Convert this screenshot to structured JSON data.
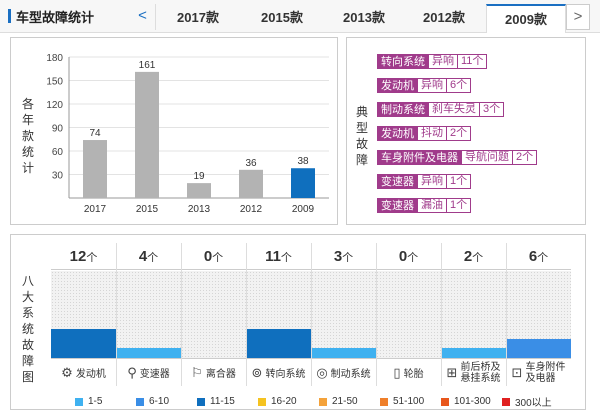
{
  "header": {
    "title": "车型故障统计",
    "prev_icon": "<",
    "next_icon": ">",
    "tabs": [
      "2017款",
      "2015款",
      "2013款",
      "2012款",
      "2009款"
    ],
    "active_tab": 4
  },
  "bar_panel": {
    "ylabel": "各年款统计",
    "chart_data": {
      "type": "bar",
      "categories": [
        "2017",
        "2015",
        "2013",
        "2012",
        "2009"
      ],
      "values": [
        74,
        161,
        19,
        36,
        38
      ],
      "ylim": [
        0,
        180
      ],
      "yticks": [
        30,
        60,
        90,
        120,
        150,
        180
      ],
      "grid": true,
      "colors": [
        "#b3b3b3",
        "#b3b3b3",
        "#b3b3b3",
        "#b3b3b3",
        "#0f6fbe"
      ]
    }
  },
  "typical_panel": {
    "label": "典型故障",
    "items": [
      {
        "system": "转向系统",
        "desc": "异响",
        "count": "11个"
      },
      {
        "system": "发动机",
        "desc": "异响",
        "count": "6个"
      },
      {
        "system": "制动系统",
        "desc": "刹车失灵",
        "count": "3个"
      },
      {
        "system": "发动机",
        "desc": "抖动",
        "count": "2个"
      },
      {
        "system": "车身附件及电器",
        "desc": "导航问题",
        "count": "2个"
      },
      {
        "system": "变速器",
        "desc": "异响",
        "count": "1个"
      },
      {
        "system": "变速器",
        "desc": "漏油",
        "count": "1个"
      }
    ]
  },
  "grid_panel": {
    "label": "八大系统故障图",
    "unit": "个",
    "columns": [
      {
        "num": "12",
        "name": "发动机",
        "icon": "engine-icon",
        "glyph": "⚙",
        "level": 0.33,
        "color": "#0f6fbe"
      },
      {
        "num": "4",
        "name": "变速器",
        "icon": "gearshift-icon",
        "glyph": "⚲",
        "level": 0.11,
        "color": "#3fb1f0"
      },
      {
        "num": "0",
        "name": "离合器",
        "icon": "clutch-icon",
        "glyph": "⚐",
        "level": 0,
        "color": "#3fb1f0"
      },
      {
        "num": "11",
        "name": "转向系统",
        "icon": "steering-wheel-icon",
        "glyph": "⊚",
        "level": 0.33,
        "color": "#0f6fbe"
      },
      {
        "num": "3",
        "name": "制动系统",
        "icon": "brake-disc-icon",
        "glyph": "◎",
        "level": 0.11,
        "color": "#3fb1f0"
      },
      {
        "num": "0",
        "name": "轮胎",
        "icon": "tire-icon",
        "glyph": "▯",
        "level": 0,
        "color": "#3fb1f0"
      },
      {
        "num": "2",
        "name": "前后桥及悬挂系统",
        "name_lines": [
          "前后桥及",
          "悬挂系统"
        ],
        "icon": "axle-icon",
        "glyph": "⊞",
        "level": 0.11,
        "color": "#3fb1f0"
      },
      {
        "num": "6",
        "name": "车身附件及电器",
        "name_lines": [
          "车身附件",
          "及电器"
        ],
        "icon": "car-body-icon",
        "glyph": "⊡",
        "level": 0.22,
        "color": "#3a8ee6"
      }
    ],
    "legend": [
      {
        "label": "1-5",
        "color": "#3fb1f0"
      },
      {
        "label": "6-10",
        "color": "#3a8ee6"
      },
      {
        "label": "11-15",
        "color": "#0f6fbe"
      },
      {
        "label": "16-20",
        "color": "#f5c320"
      },
      {
        "label": "21-50",
        "color": "#f4a23a"
      },
      {
        "label": "51-100",
        "color": "#ef7f2a"
      },
      {
        "label": "101-300",
        "color": "#e8561c"
      },
      {
        "label": "300以上",
        "color": "#e02020"
      }
    ]
  }
}
